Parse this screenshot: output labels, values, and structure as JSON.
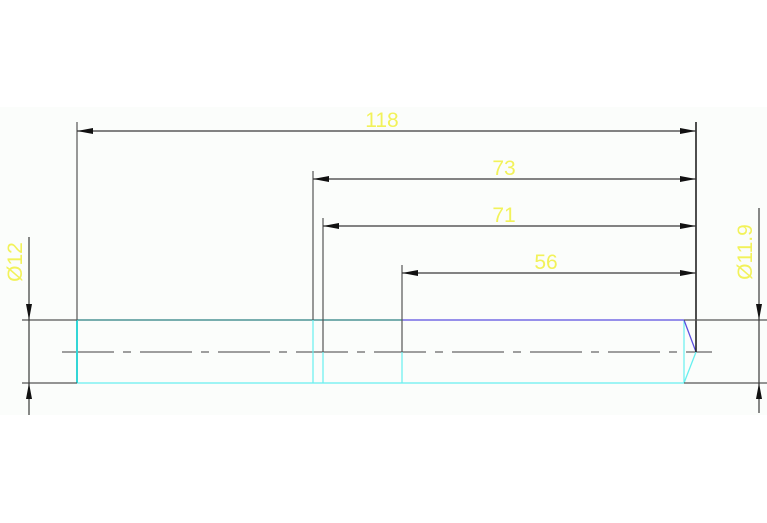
{
  "drawing": {
    "dimensions": {
      "overall_length": "118",
      "length_73": "73",
      "length_71": "71",
      "length_56": "56",
      "left_diameter": "Ø12",
      "right_diameter": "Ø11.9"
    },
    "colors": {
      "background_band": "#fbfdfb",
      "dimension_text": "#f2f25a",
      "outline_teal": "#2a7f7f",
      "outline_cyan": "#66f0f0",
      "outline_purple": "#5a4ee0",
      "dimension_lines": "#3a3a3a"
    }
  }
}
